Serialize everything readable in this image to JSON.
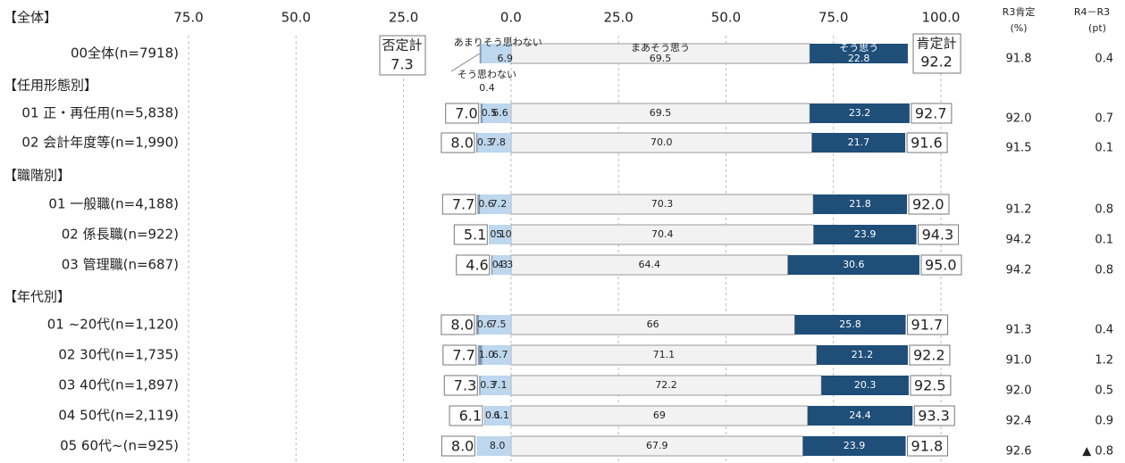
{
  "chart_data": {
    "type": "diverging_bar",
    "groups": [
      {
        "label": "【全体】",
        "categories": [
          "00全体(n=7918)"
        ]
      },
      {
        "label": "【任用形態別】",
        "categories": [
          "01 正・再任用(n=5,838)",
          "02 会計年度等(n=1,990)"
        ]
      },
      {
        "label": "【職階別】",
        "categories": [
          "01 一般職(n=4,188)",
          "02 係長職(n=922)",
          "03 管理職(n=687)"
        ]
      },
      {
        "label": "【年代別】",
        "categories": [
          "01 ~20代(n=1,120)",
          "02 30代(n=1,735)",
          "03 40代(n=1,897)",
          "04 50代(n=2,119)",
          "05 60代~(n=925)"
        ]
      }
    ],
    "xlim": [
      -75,
      100
    ],
    "xticks": [
      {
        "value": -75,
        "label": "75.0"
      },
      {
        "value": -50,
        "label": "50.0"
      },
      {
        "value": -25,
        "label": "25.0"
      },
      {
        "value": 0,
        "label": "0.0"
      },
      {
        "value": 25,
        "label": "25.0"
      },
      {
        "value": 50,
        "label": "50.0"
      },
      {
        "value": 75,
        "label": "75.0"
      },
      {
        "value": 100,
        "label": "100.0"
      }
    ],
    "grid": true,
    "series": [
      {
        "name": "そう思わない",
        "color": "#8497b0",
        "side": "negative",
        "values": [
          0.4,
          0.5,
          0.3,
          0.6,
          0.1,
          0.3,
          0.6,
          1.0,
          0.3,
          0.1,
          null
        ],
        "value_labels": [
          "0.4",
          "0.5",
          "0.3",
          "0.6",
          "0.1",
          "0.3",
          "0.6",
          "1.0",
          "0.3",
          "0.1",
          null
        ]
      },
      {
        "name": "あまりそう思わない",
        "color": "#bdd7ee",
        "side": "negative",
        "values": [
          6.9,
          6.6,
          7.8,
          7.2,
          5.0,
          4.3,
          7.5,
          6.7,
          7.1,
          6.1,
          8.0
        ],
        "value_labels": [
          "6.9",
          "6.6",
          "7.8",
          "7.2",
          "5.0",
          "4.3",
          "7.5",
          "6.7",
          "7.1",
          "6.1",
          "8.0"
        ]
      },
      {
        "name": "まあそう思う",
        "color": "#f2f2f2",
        "side": "positive",
        "values": [
          69.5,
          69.5,
          70.0,
          70.3,
          70.4,
          64.4,
          66,
          71.1,
          72.2,
          69,
          67.9
        ],
        "value_labels": [
          "69.5",
          "69.5",
          "70.0",
          "70.3",
          "70.4",
          "64.4",
          "66",
          "71.1",
          "72.2",
          "69",
          "67.9"
        ]
      },
      {
        "name": "そう思う",
        "color": "#1f4e79",
        "side": "positive",
        "values": [
          22.8,
          23.2,
          21.7,
          21.8,
          23.9,
          30.6,
          25.8,
          21.2,
          20.3,
          24.4,
          23.9
        ],
        "value_labels": [
          "22.8",
          "23.2",
          "21.7",
          "21.8",
          "23.9",
          "30.6",
          "25.8",
          "21.2",
          "20.3",
          "24.4",
          "23.9"
        ]
      }
    ],
    "negative_total": {
      "label": "否定計",
      "values": [
        7.3,
        7.0,
        8.0,
        7.7,
        5.1,
        4.6,
        8.0,
        7.7,
        7.3,
        6.1,
        8.0
      ],
      "value_labels": [
        "7.3",
        "7.0",
        "8.0",
        "7.7",
        "5.1",
        "4.6",
        "8.0",
        "7.7",
        "7.3",
        "6.1",
        "8.0"
      ]
    },
    "positive_total": {
      "label": "肯定計",
      "values": [
        92.2,
        92.7,
        91.6,
        92.0,
        94.3,
        95.0,
        91.7,
        92.2,
        92.5,
        93.3,
        91.8
      ],
      "value_labels": [
        "92.2",
        "92.7",
        "91.6",
        "92.0",
        "94.3",
        "95.0",
        "91.7",
        "92.2",
        "92.5",
        "93.3",
        "91.8"
      ]
    },
    "r3": {
      "label": "R3肯定",
      "unit": "(%)",
      "values": [
        91.8,
        92.0,
        91.5,
        91.2,
        94.2,
        94.2,
        91.3,
        91.0,
        92.0,
        92.4,
        92.6
      ],
      "value_labels": [
        "91.8",
        "92.0",
        "91.5",
        "91.2",
        "94.2",
        "94.2",
        "91.3",
        "91.0",
        "92.0",
        "92.4",
        "92.6"
      ]
    },
    "diff": {
      "label": "R4－R3",
      "unit": "(pt)",
      "values": [
        0.4,
        0.7,
        0.1,
        0.8,
        0.1,
        0.8,
        0.4,
        1.2,
        0.5,
        0.9,
        -0.8
      ],
      "value_labels": [
        "0.4",
        "0.7",
        "0.1",
        "0.8",
        "0.1",
        "0.8",
        "0.4",
        "1.2",
        "0.5",
        "0.9",
        "▲ 0.8"
      ]
    }
  }
}
